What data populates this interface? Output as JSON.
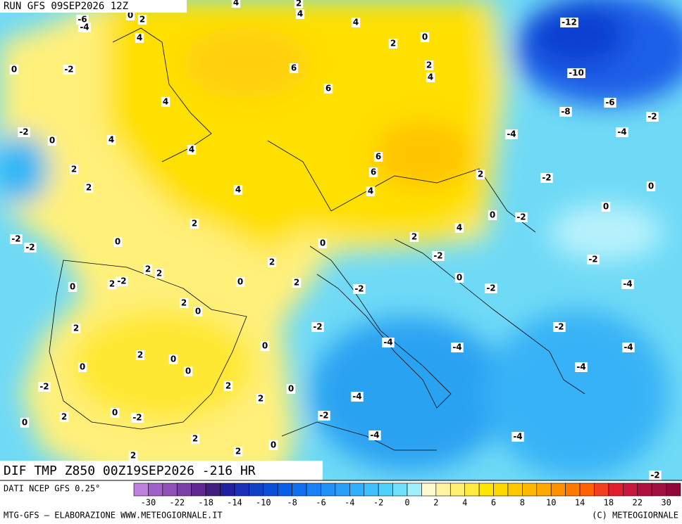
{
  "header": {
    "title": "RUN GFS 09SEP2026 12Z"
  },
  "map_title": "DIF TMP Z850 00Z19SEP2026 -216 HR",
  "map_labels": [
    -6,
    -4,
    0,
    2,
    4,
    4,
    4,
    2,
    4,
    2,
    0,
    -12,
    -10,
    -6,
    -8,
    -2,
    -4,
    -4,
    0,
    -2,
    6,
    2,
    4,
    6,
    4,
    -2,
    0,
    4,
    4,
    6,
    2,
    6,
    2,
    -2,
    2,
    4,
    4,
    0,
    0,
    0,
    -2,
    2,
    4,
    -2,
    -2,
    0,
    0,
    2,
    -2,
    2,
    -2,
    2,
    2,
    0,
    0,
    2,
    -2,
    2,
    0,
    -2,
    -2,
    -4,
    2,
    0,
    -2,
    -2,
    2,
    -4,
    -4,
    0,
    -4,
    2,
    0,
    0,
    0,
    -4,
    -2,
    2,
    0,
    2,
    -4,
    0,
    -2,
    2,
    0,
    -2,
    -4,
    -4,
    2,
    0,
    2,
    2,
    -2
  ],
  "footer": {
    "data_source": "DATI NCEP GFS 0.25°",
    "credit": "MTG-GFS – ELABORAZIONE WWW.METEOGIORNALE.IT",
    "copyright": "(C) METEOGIORNALE"
  },
  "colorbar": {
    "ticks": [
      -30,
      -22,
      -18,
      -14,
      -10,
      -8,
      -6,
      -4,
      -2,
      0,
      2,
      4,
      6,
      8,
      10,
      14,
      18,
      22,
      30
    ],
    "colors": [
      "#c080e0",
      "#a060c8",
      "#9050b8",
      "#7a40a8",
      "#602890",
      "#402080",
      "#2020a0",
      "#1830b8",
      "#1040c8",
      "#0a50d8",
      "#0860e8",
      "#1070f0",
      "#1a80f5",
      "#2090f8",
      "#28a0fa",
      "#30b0fc",
      "#40c0fc",
      "#50d0fc",
      "#70e0fc",
      "#a0f0fc",
      "#fffbd0",
      "#fff5a0",
      "#fff070",
      "#ffeb40",
      "#ffe600",
      "#ffd800",
      "#ffc800",
      "#ffb800",
      "#ffa800",
      "#ff9000",
      "#ff7800",
      "#ff6000",
      "#f04020",
      "#e02030",
      "#c81840",
      "#b01040",
      "#a01040",
      "#900838"
    ]
  }
}
